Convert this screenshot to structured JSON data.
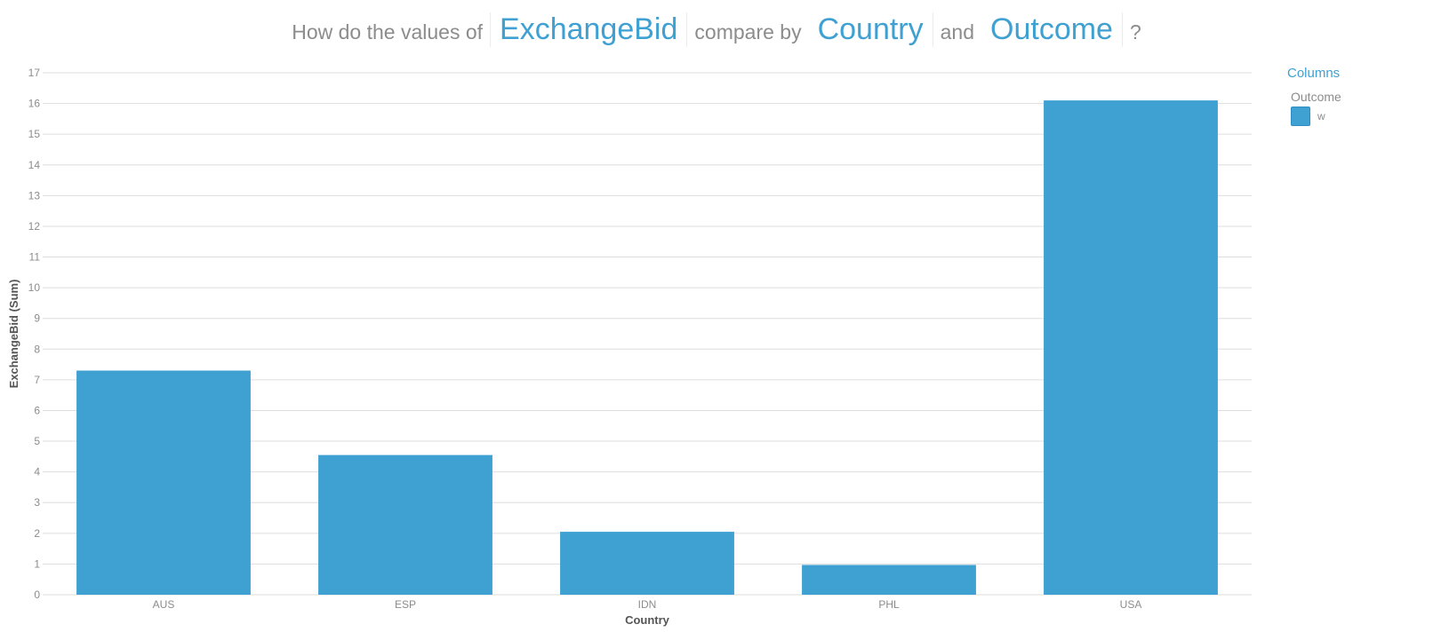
{
  "question": {
    "prefix": "How do the values of",
    "measure": "ExchangeBid",
    "mid": "compare by",
    "dimension1": "Country",
    "conj": "and",
    "dimension2": "Outcome",
    "suffix": "?"
  },
  "legend": {
    "title": "Columns",
    "subtitle": "Outcome",
    "items": [
      {
        "label": "w",
        "color": "#3fa0d2"
      }
    ]
  },
  "colors": {
    "bar": "#3fa0d2",
    "grid": "#dddddd",
    "text": "#8c8c8c",
    "accent": "#3fa0d2"
  },
  "chart_data": {
    "type": "bar",
    "categories": [
      "AUS",
      "ESP",
      "IDN",
      "PHL",
      "USA"
    ],
    "series": [
      {
        "name": "w",
        "values": [
          7.3,
          4.55,
          2.05,
          0.97,
          16.1
        ]
      }
    ],
    "xlabel": "Country",
    "ylabel": "ExchangeBid (Sum)",
    "ylim": [
      0,
      17
    ],
    "yticks": [
      0,
      1,
      2,
      3,
      4,
      5,
      6,
      7,
      8,
      9,
      10,
      11,
      12,
      13,
      14,
      15,
      16,
      17
    ],
    "grid": true,
    "legend_position": "top-right"
  }
}
